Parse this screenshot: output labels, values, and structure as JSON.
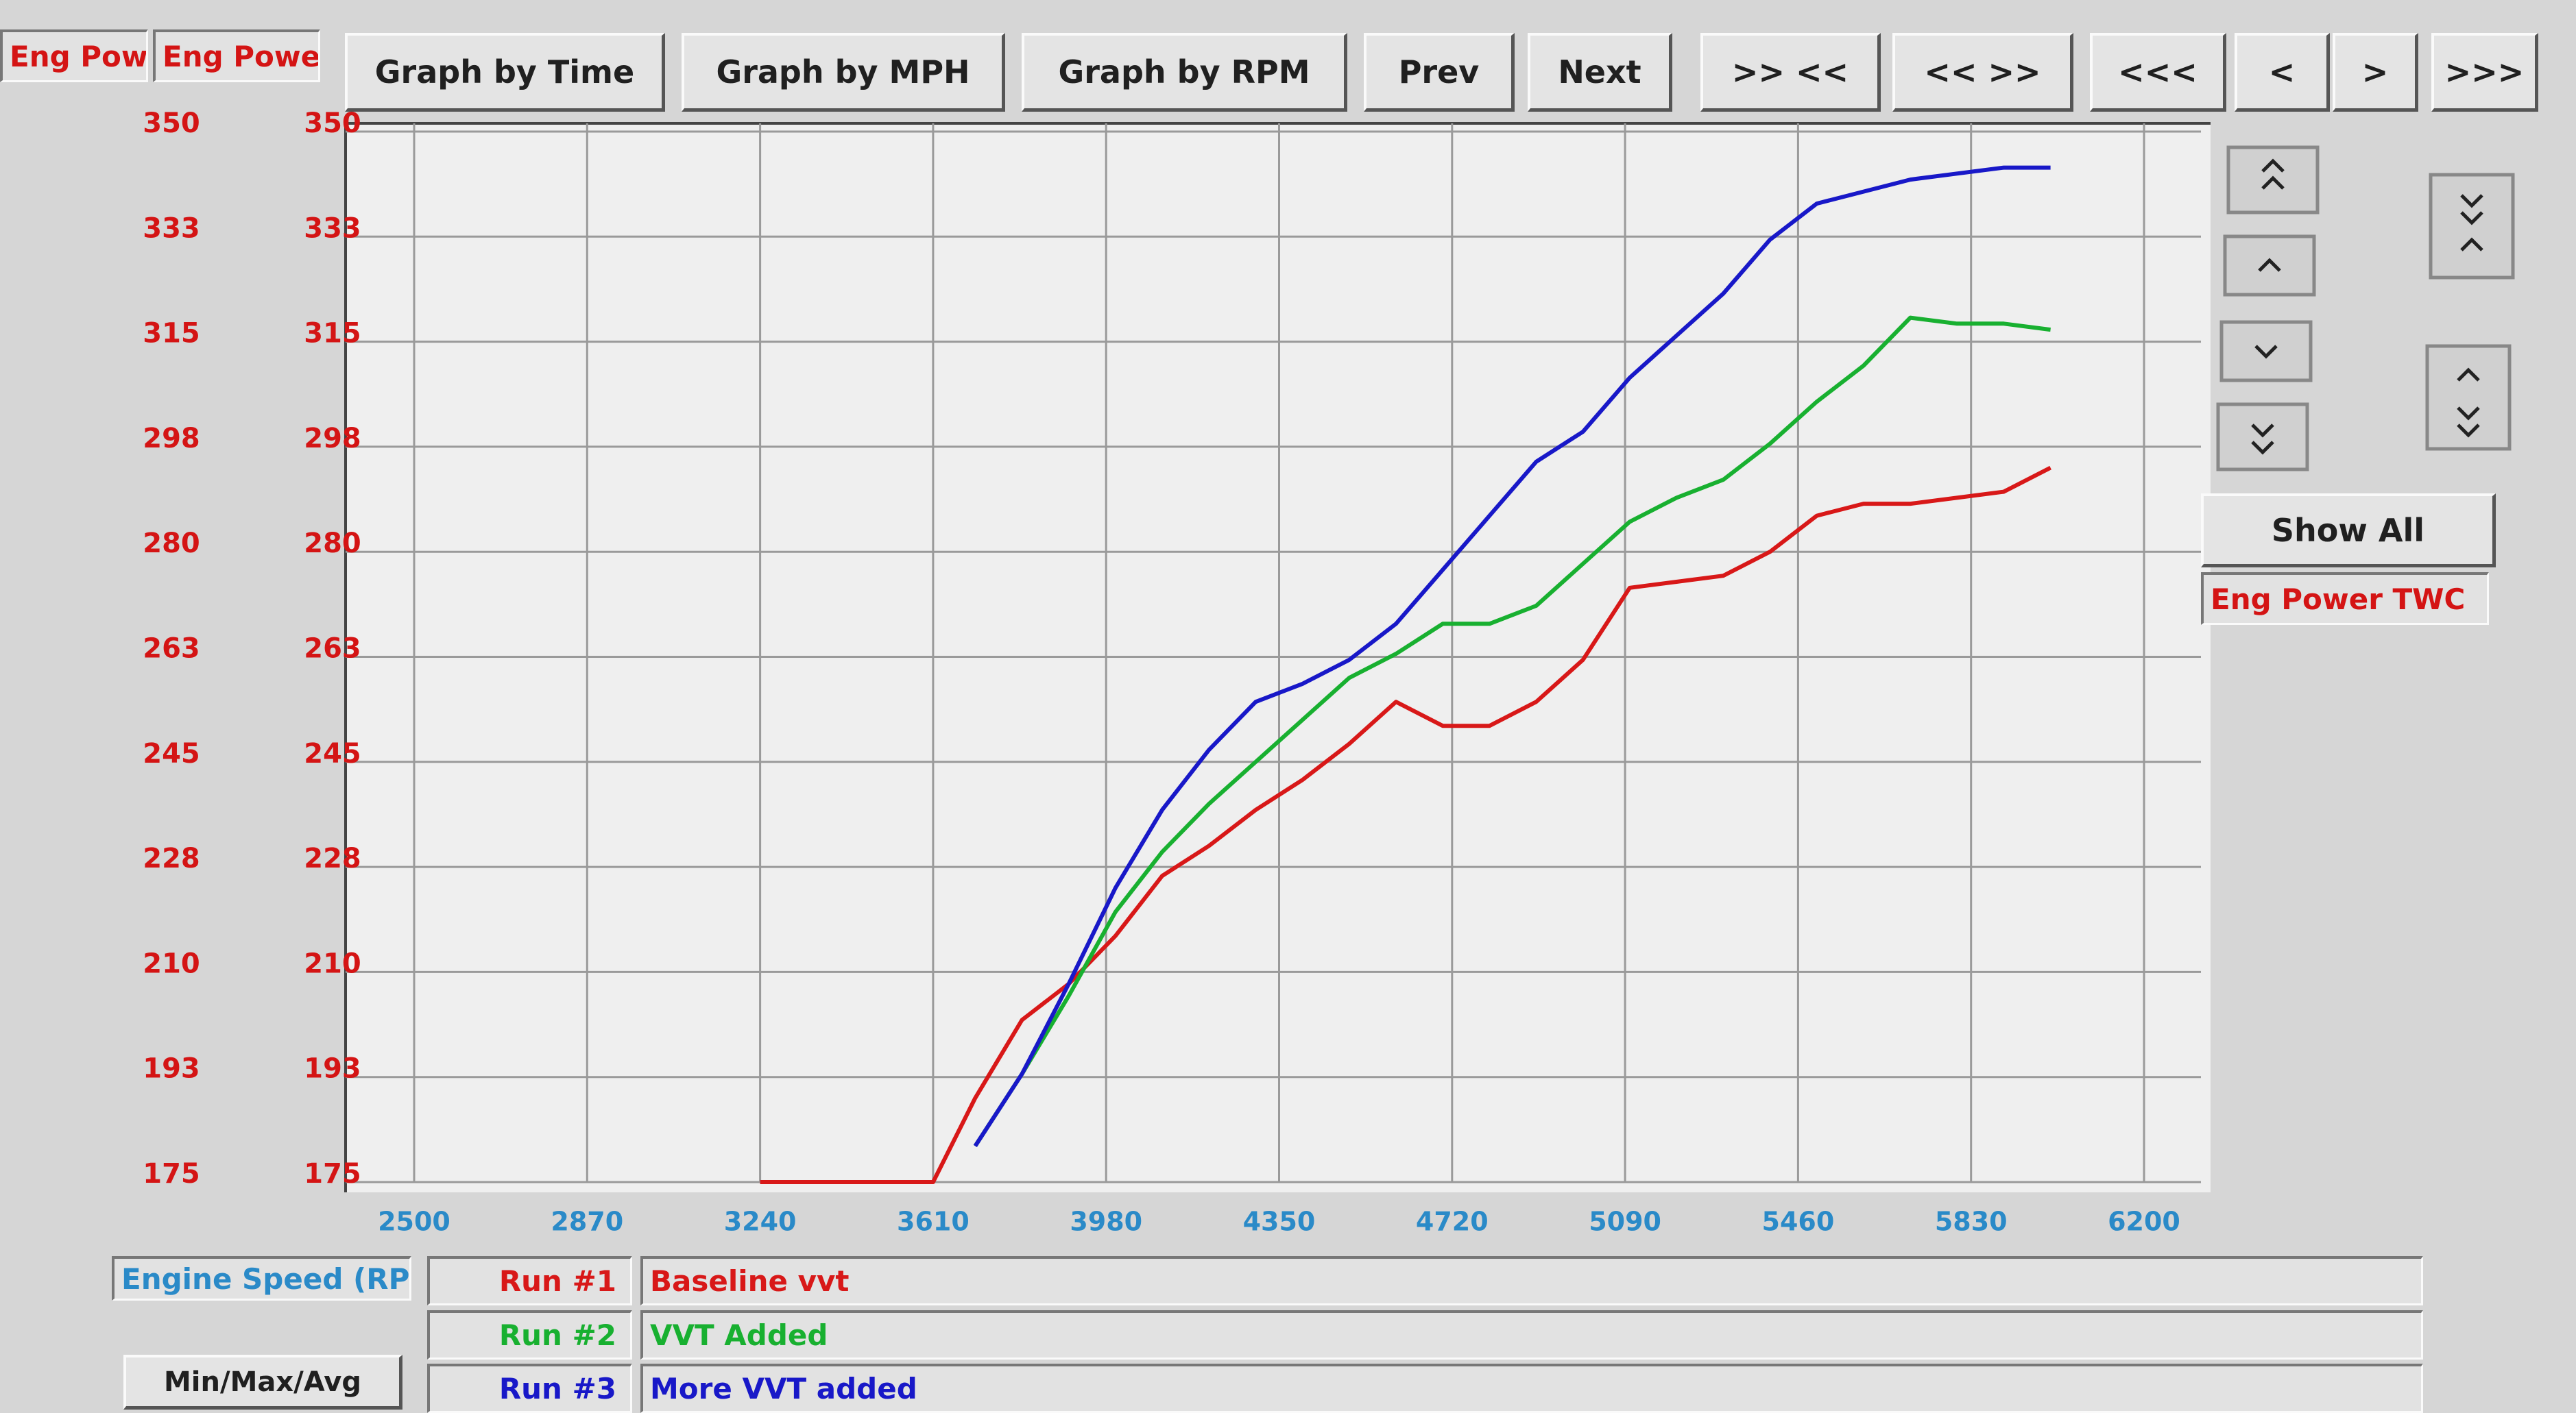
{
  "toolbar": {
    "buttons": [
      "Graph by Time",
      "Graph by MPH",
      "Graph by RPM",
      "Prev",
      "Next",
      ">> <<",
      "<< >>",
      "<<<",
      "<",
      ">",
      ">>>"
    ]
  },
  "side_panel": {
    "show_all": "Show All",
    "channel": "Eng Power TWC"
  },
  "x_channel": "Engine Speed (RPM)",
  "min_max_avg": "Min/Max/Avg",
  "chart_data": {
    "type": "line",
    "y_axis_labels": [
      "Eng Power TWC",
      "Eng Power TWC"
    ],
    "x": [
      3240,
      3610,
      3700,
      3800,
      3900,
      4000,
      4100,
      4200,
      4300,
      4400,
      4500,
      4600,
      4700,
      4800,
      4900,
      5000,
      5100,
      5200,
      5300,
      5400,
      5500,
      5600,
      5700,
      5800,
      5900,
      6000
    ],
    "series": [
      {
        "run": "Run #1",
        "name": "Baseline vvt",
        "color": "#d81818",
        "values": [
          175,
          175,
          189,
          202,
          208,
          216,
          226,
          231,
          237,
          242,
          248,
          255,
          251,
          251,
          255,
          262,
          274,
          275,
          276,
          280,
          286,
          288,
          288,
          289,
          290,
          294
        ]
      },
      {
        "run": "Run #2",
        "name": "VVT Added",
        "color": "#18b030",
        "values": [
          null,
          null,
          181,
          193,
          206,
          220,
          230,
          238,
          245,
          252,
          259,
          263,
          268,
          268,
          271,
          278,
          285,
          289,
          292,
          298,
          305,
          311,
          319,
          318,
          318,
          317
        ]
      },
      {
        "run": "Run #3",
        "name": "More VVT added",
        "color": "#1818c8",
        "values": [
          null,
          null,
          181,
          193,
          208,
          224,
          237,
          247,
          255,
          258,
          262,
          268,
          277,
          286,
          295,
          300,
          309,
          316,
          323,
          332,
          338,
          340,
          342,
          343,
          344,
          344
        ]
      }
    ],
    "xlim": [
      2500,
      6200
    ],
    "xticks": [
      2500,
      2870,
      3240,
      3610,
      3980,
      4350,
      4720,
      5090,
      5460,
      5830,
      6200
    ],
    "ylim": [
      175,
      350
    ],
    "yticks": [
      175,
      {
        "value": 192.5,
        "label": "193"
      },
      210,
      {
        "value": 227.5,
        "label": "228"
      },
      245,
      {
        "value": 262.5,
        "label": "263"
      },
      280,
      {
        "value": 297.5,
        "label": "298"
      },
      315,
      {
        "value": 332.5,
        "label": "333"
      },
      350
    ],
    "grid": true,
    "x_tick_color": "#2a8ac8",
    "y_tick_color": "#d41414"
  }
}
